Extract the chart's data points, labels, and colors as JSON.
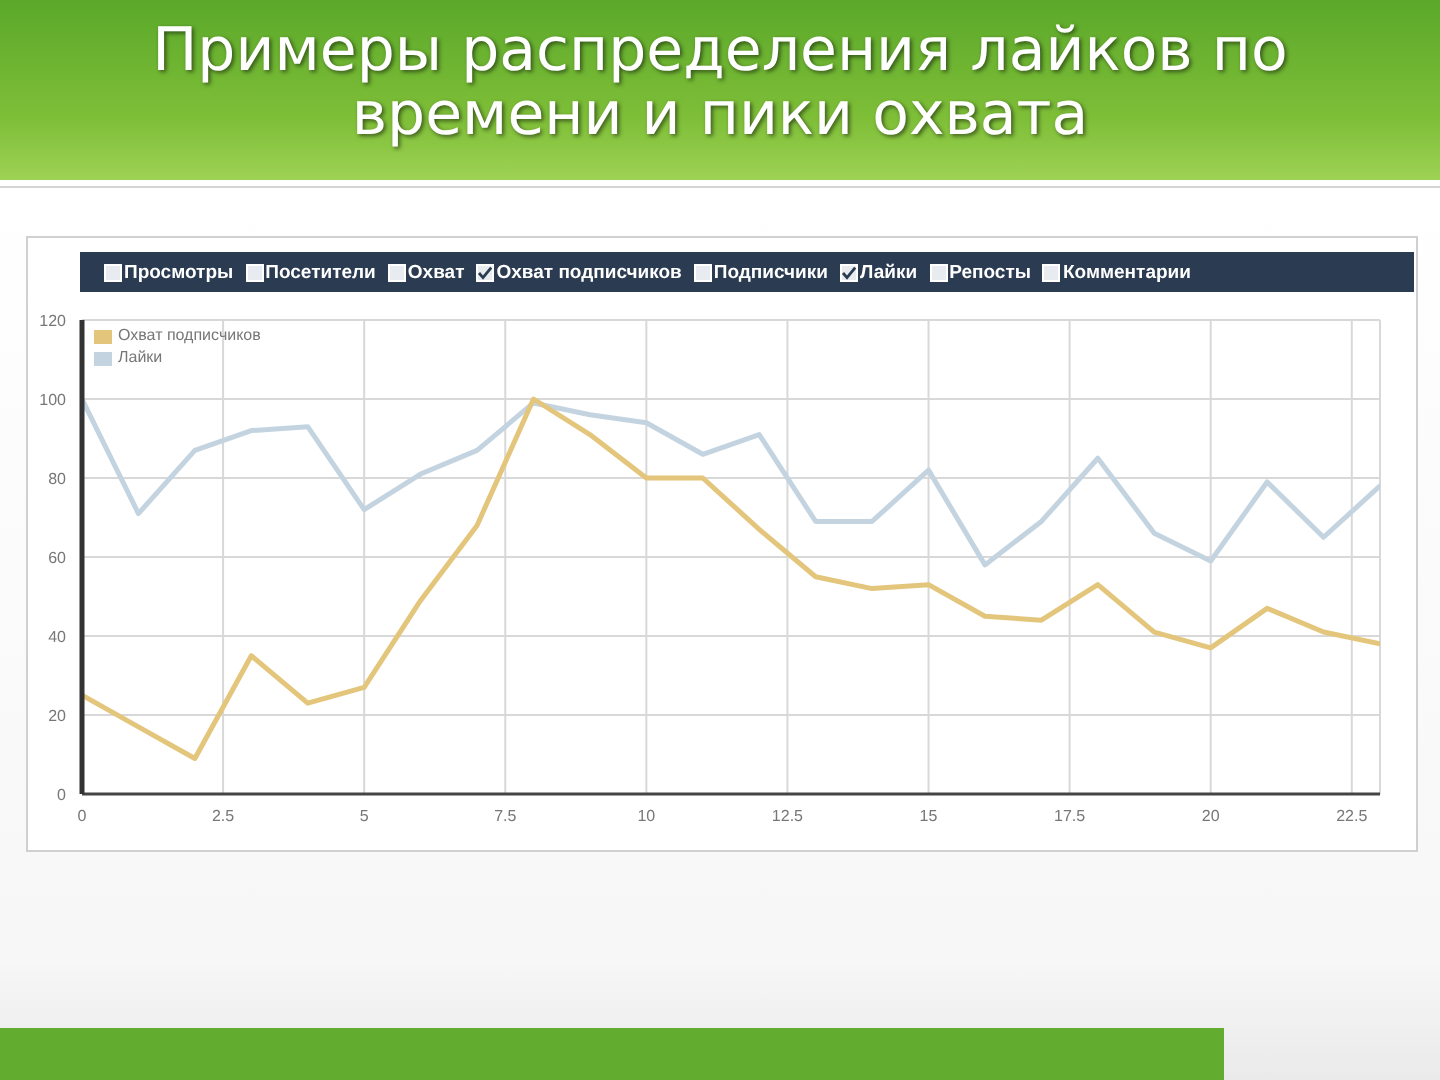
{
  "chart_data": {
    "type": "line",
    "title": "Примеры распределения лайков по времени и пики охвата",
    "annotations": [
      "Просмотры",
      "Посетители",
      "Охват",
      "Охват подписчиков",
      "Подписчики",
      "Лайки",
      "Репосты",
      "Комментарии"
    ],
    "x": [
      0,
      1,
      2,
      3,
      4,
      5,
      6,
      7,
      8,
      9,
      10,
      11,
      12,
      13,
      14,
      15,
      16,
      17,
      18,
      19,
      20,
      21,
      22,
      23
    ],
    "series": [
      {
        "name": "Охват подписчиков",
        "color": "#e3c67b",
        "values": [
          25,
          17,
          9,
          35,
          23,
          27,
          49,
          68,
          100,
          91,
          80,
          80,
          67,
          55,
          52,
          53,
          45,
          44,
          53,
          41,
          37,
          47,
          41,
          38
        ]
      },
      {
        "name": "Лайки",
        "color": "#c3d4e0",
        "values": [
          100,
          71,
          87,
          92,
          93,
          72,
          81,
          87,
          99,
          96,
          94,
          86,
          91,
          69,
          69,
          82,
          58,
          69,
          85,
          66,
          59,
          79,
          65,
          78
        ]
      }
    ],
    "xlim": [
      0,
      23
    ],
    "xticks": [
      0,
      2.5,
      5,
      7.5,
      10,
      12.5,
      15,
      17.5,
      20,
      22.5
    ],
    "ylim": [
      0,
      120
    ],
    "yticks": [
      0,
      20,
      40,
      60,
      80,
      100,
      120
    ],
    "grid": true,
    "legend": "top left",
    "marker": "none",
    "line_style": "solid"
  }
}
